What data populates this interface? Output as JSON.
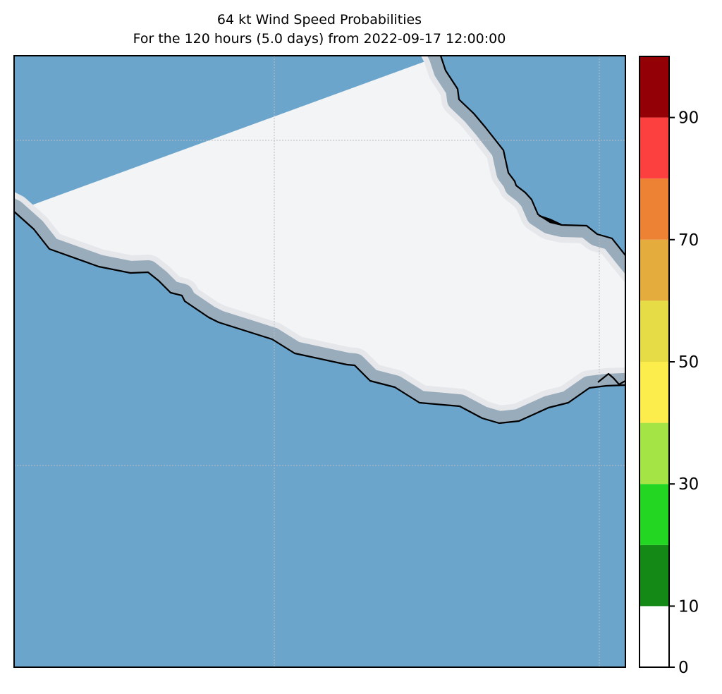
{
  "title": "64 kt Wind Speed Probabilities",
  "subtitle": "For the 120 hours (5.0 days) from 2022-09-17 12:00:00",
  "colors": {
    "land": "#f3f4f6",
    "ocean": "#6ca5cb",
    "coast_band": "#98acbc",
    "coast_halo": "#e6e7ea",
    "coastline": "#000000",
    "gridline": "#b9bcc2"
  },
  "colorbar": {
    "levels": [
      0,
      10,
      20,
      30,
      40,
      50,
      60,
      70,
      80,
      90,
      100
    ],
    "colors": [
      "#ffffff",
      "#158915",
      "#22d622",
      "#a4e444",
      "#fcec4c",
      "#e6dc45",
      "#e4ac3c",
      "#ee8234",
      "#fc3f3f",
      "#930006",
      "#7f26d9"
    ],
    "tick_values": [
      0,
      10,
      30,
      50,
      70,
      90
    ],
    "tick_labels": [
      "0",
      "10",
      "30",
      "50",
      "70",
      "90"
    ]
  }
}
